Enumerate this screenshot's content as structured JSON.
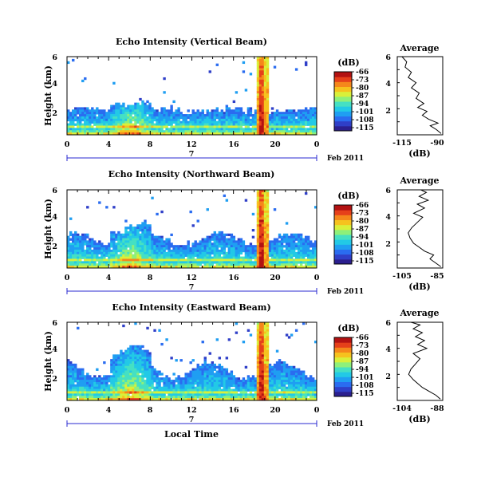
{
  "colorscale": [
    "#2b1f8f",
    "#2f3fc8",
    "#2a6cf0",
    "#1f9ef2",
    "#22c9e6",
    "#45e0c3",
    "#8ef07a",
    "#d9f03a",
    "#f6c21e",
    "#f5871b",
    "#e6401a",
    "#b31212"
  ],
  "footer": {
    "date_label": "Feb 2011",
    "day_label": "7",
    "x_axis_title": "Local Time"
  },
  "chart_data": [
    {
      "type": "heatmap",
      "title": "Echo Intensity (Vertical Beam)",
      "xlabel": "",
      "ylabel": "Height (km)",
      "x_ticks": [
        "0",
        "4",
        "8",
        "12",
        "16",
        "20",
        "0"
      ],
      "y_ticks": [
        "2",
        "4",
        "6"
      ],
      "xlim": [
        0,
        24
      ],
      "ylim": [
        0,
        6.2
      ],
      "colorbar": {
        "unit": "(dB)",
        "ticks": [
          "-66",
          "-73",
          "-80",
          "-87",
          "-94",
          "-101",
          "-108",
          "-115"
        ],
        "range": [
          -115,
          -66
        ]
      },
      "profile": {
        "title": "Average",
        "xlabel": "(dB)",
        "x_ticks": [
          "-115",
          "-90"
        ],
        "y_ticks": [
          "2",
          "4",
          "6"
        ],
        "xlim": [
          -117,
          -88
        ],
        "ylim": [
          0,
          6
        ],
        "points": [
          [
            -89,
            0.1
          ],
          [
            -92,
            0.4
          ],
          [
            -96,
            0.7
          ],
          [
            -91,
            0.9
          ],
          [
            -97,
            1.2
          ],
          [
            -101,
            1.5
          ],
          [
            -98,
            1.8
          ],
          [
            -104,
            2.1
          ],
          [
            -100,
            2.4
          ],
          [
            -105,
            2.8
          ],
          [
            -103,
            3.2
          ],
          [
            -108,
            3.6
          ],
          [
            -105,
            4.0
          ],
          [
            -110,
            4.4
          ],
          [
            -108,
            4.8
          ],
          [
            -112,
            5.2
          ],
          [
            -111,
            5.6
          ],
          [
            -114,
            6.0
          ]
        ]
      }
    },
    {
      "type": "heatmap",
      "title": "Echo Intensity (Northward Beam)",
      "xlabel": "",
      "ylabel": "Height (km)",
      "x_ticks": [
        "0",
        "4",
        "8",
        "12",
        "16",
        "20",
        "0"
      ],
      "y_ticks": [
        "2",
        "4",
        "6"
      ],
      "xlim": [
        0,
        24
      ],
      "ylim": [
        0,
        6.2
      ],
      "colorbar": {
        "unit": "(dB)",
        "ticks": [
          "-66",
          "-73",
          "-80",
          "-87",
          "-94",
          "-101",
          "-108",
          "-115"
        ],
        "range": [
          -115,
          -66
        ]
      },
      "profile": {
        "title": "Average",
        "xlabel": "(dB)",
        "x_ticks": [
          "-105",
          "-85"
        ],
        "y_ticks": [
          "2",
          "4",
          "6"
        ],
        "xlim": [
          -108,
          -83
        ],
        "ylim": [
          0,
          6
        ],
        "points": [
          [
            -84,
            0.1
          ],
          [
            -87,
            0.4
          ],
          [
            -90,
            0.7
          ],
          [
            -88,
            1.0
          ],
          [
            -93,
            1.3
          ],
          [
            -96,
            1.6
          ],
          [
            -99,
            1.9
          ],
          [
            -101,
            2.3
          ],
          [
            -102,
            2.7
          ],
          [
            -100,
            3.1
          ],
          [
            -97,
            3.5
          ],
          [
            -94,
            3.9
          ],
          [
            -99,
            4.2
          ],
          [
            -93,
            4.6
          ],
          [
            -97,
            4.9
          ],
          [
            -91,
            5.2
          ],
          [
            -96,
            5.5
          ],
          [
            -92,
            5.8
          ],
          [
            -95,
            6.0
          ]
        ]
      }
    },
    {
      "type": "heatmap",
      "title": "Echo Intensity (Eastward Beam)",
      "xlabel": "Local Time",
      "ylabel": "Height (km)",
      "x_ticks": [
        "0",
        "4",
        "8",
        "12",
        "16",
        "20",
        "0"
      ],
      "y_ticks": [
        "2",
        "4",
        "6"
      ],
      "xlim": [
        0,
        24
      ],
      "ylim": [
        0,
        6.2
      ],
      "colorbar": {
        "unit": "(dB)",
        "ticks": [
          "-66",
          "-73",
          "-80",
          "-87",
          "-94",
          "-101",
          "-108",
          "-115"
        ],
        "range": [
          -115,
          -66
        ]
      },
      "profile": {
        "title": "Average",
        "xlabel": "(dB)",
        "x_ticks": [
          "-104",
          "-88"
        ],
        "y_ticks": [
          "2",
          "4",
          "6"
        ],
        "xlim": [
          -106,
          -86
        ],
        "ylim": [
          0,
          6
        ],
        "points": [
          [
            -87,
            0.1
          ],
          [
            -89,
            0.4
          ],
          [
            -92,
            0.7
          ],
          [
            -95,
            1.0
          ],
          [
            -97,
            1.3
          ],
          [
            -99,
            1.6
          ],
          [
            -101,
            2.0
          ],
          [
            -100,
            2.4
          ],
          [
            -98,
            2.8
          ],
          [
            -96,
            3.2
          ],
          [
            -99,
            3.6
          ],
          [
            -93,
            4.0
          ],
          [
            -97,
            4.3
          ],
          [
            -94,
            4.6
          ],
          [
            -98,
            4.9
          ],
          [
            -95,
            5.2
          ],
          [
            -99,
            5.5
          ],
          [
            -96,
            5.8
          ],
          [
            -100,
            6.0
          ]
        ]
      }
    }
  ]
}
